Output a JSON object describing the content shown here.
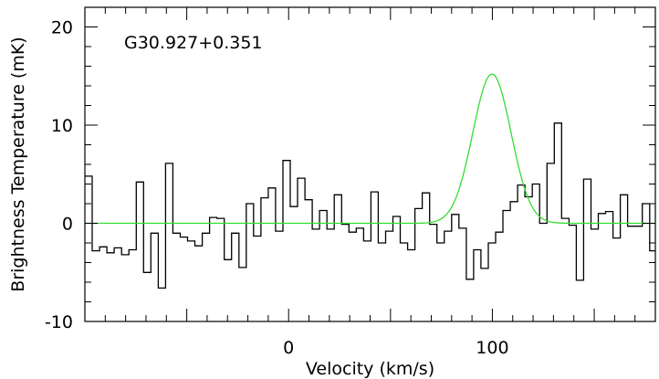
{
  "chart_data": {
    "type": "line",
    "xlabel": "Velocity (km/s)",
    "ylabel": "Brightness Temperature (mK)",
    "annotation": "G30.927+0.351",
    "xlim": [
      -100,
      180
    ],
    "ylim": [
      -10,
      22
    ],
    "xticks": [
      0,
      100
    ],
    "yticks": [
      -10,
      0,
      10,
      20
    ],
    "grid": false,
    "colors": {
      "spectrum": "#000000",
      "fit": "#33dd33"
    },
    "series": [
      {
        "style": "histogram",
        "bin_width": 3.6,
        "x": [
          -98.2,
          -94.6,
          -91,
          -87.4,
          -83.8,
          -80.2,
          -76.6,
          -73,
          -69.4,
          -65.8,
          -62.2,
          -58.6,
          -55,
          -51.4,
          -47.8,
          -44.2,
          -40.6,
          -37,
          -33.4,
          -29.8,
          -26.2,
          -22.6,
          -19,
          -15.4,
          -11.8,
          -8.2,
          -4.6,
          -1,
          2.6,
          6.2,
          9.8,
          13.4,
          17,
          20.6,
          24.2,
          27.8,
          31.4,
          35,
          38.6,
          42.2,
          45.8,
          49.4,
          53,
          56.6,
          60.2,
          63.8,
          67.4,
          71,
          74.6,
          78.2,
          81.8,
          85.4,
          89,
          92.6,
          96.2,
          99.8,
          103.4,
          107,
          110.6,
          114.2,
          117.8,
          121.4,
          125,
          128.6,
          132.2,
          135.8,
          139.4,
          143,
          146.6,
          150.2,
          153.8,
          157.4,
          161,
          164.6,
          168.2,
          171.8,
          175.4,
          179
        ],
        "y": [
          4.8,
          -2.8,
          -2.4,
          -3,
          -2.5,
          -3.2,
          -2.7,
          4.2,
          -5,
          -1,
          -6.6,
          6.1,
          -1,
          -1.4,
          -1.8,
          -2.3,
          -1,
          0.6,
          0.5,
          -3.7,
          -1,
          -4.5,
          2,
          -1.3,
          2.6,
          3.6,
          -0.8,
          6.4,
          1.7,
          4.6,
          2.4,
          -0.6,
          1.3,
          -0.6,
          2.9,
          -0.1,
          -0.9,
          -0.5,
          -1.8,
          3.2,
          -2,
          -0.8,
          0.7,
          -2,
          -2.7,
          1.5,
          3.1,
          -0.1,
          -2,
          -0.8,
          0.9,
          -0.5,
          -5.7,
          -2.7,
          -4.6,
          -2,
          -0.9,
          1.3,
          2.2,
          3.9,
          2.7,
          4,
          0,
          6.1,
          10.2,
          0.5,
          -0.2,
          -5.8,
          4.5,
          -0.6,
          1,
          1.2,
          -1.5,
          2.9,
          -0.3,
          -0.3,
          2,
          -2.8
        ]
      },
      {
        "style": "gaussian-fit",
        "amplitude": 15.2,
        "center": 99.8,
        "sigma": 9.4,
        "baseline": 0
      }
    ]
  }
}
